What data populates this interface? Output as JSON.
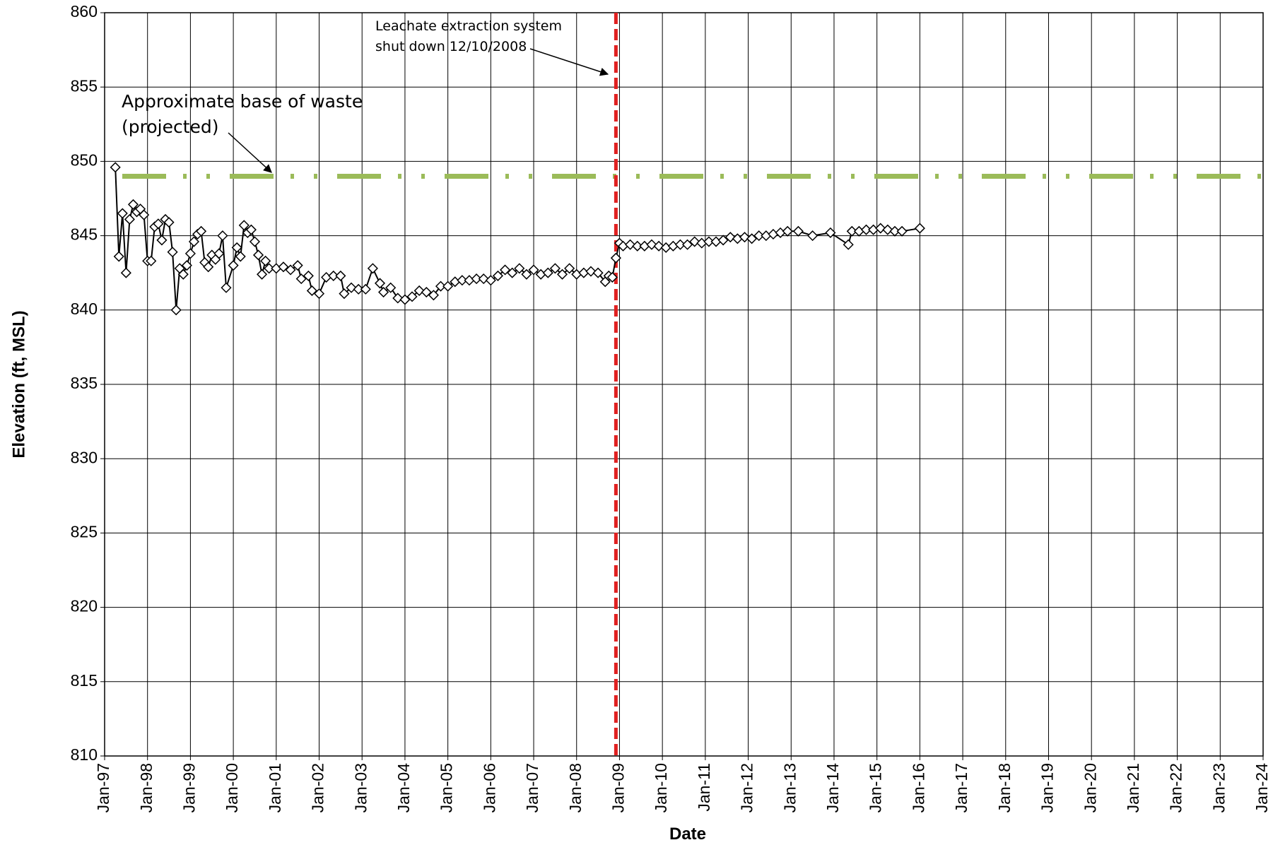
{
  "chart_data": {
    "type": "line",
    "y_label": "Elevation (ft, MSL)",
    "x_label": "Date",
    "xlim": [
      "1997-01",
      "2024-01"
    ],
    "xticks": [
      {
        "value": "1997-01",
        "label": "Jan-97"
      },
      {
        "value": "1998-01",
        "label": "Jan-98"
      },
      {
        "value": "1999-01",
        "label": "Jan-99"
      },
      {
        "value": "2000-01",
        "label": "Jan-00"
      },
      {
        "value": "2001-01",
        "label": "Jan-01"
      },
      {
        "value": "2002-01",
        "label": "Jan-02"
      },
      {
        "value": "2003-01",
        "label": "Jan-03"
      },
      {
        "value": "2004-01",
        "label": "Jan-04"
      },
      {
        "value": "2005-01",
        "label": "Jan-05"
      },
      {
        "value": "2006-01",
        "label": "Jan-06"
      },
      {
        "value": "2007-01",
        "label": "Jan-07"
      },
      {
        "value": "2008-01",
        "label": "Jan-08"
      },
      {
        "value": "2009-01",
        "label": "Jan-09"
      },
      {
        "value": "2010-01",
        "label": "Jan-10"
      },
      {
        "value": "2011-01",
        "label": "Jan-11"
      },
      {
        "value": "2012-01",
        "label": "Jan-12"
      },
      {
        "value": "2013-01",
        "label": "Jan-13"
      },
      {
        "value": "2014-01",
        "label": "Jan-14"
      },
      {
        "value": "2015-01",
        "label": "Jan-15"
      },
      {
        "value": "2016-01",
        "label": "Jan-16"
      },
      {
        "value": "2017-01",
        "label": "Jan-17"
      },
      {
        "value": "2018-01",
        "label": "Jan-18"
      },
      {
        "value": "2019-01",
        "label": "Jan-19"
      },
      {
        "value": "2020-01",
        "label": "Jan-20"
      },
      {
        "value": "2021-01",
        "label": "Jan-21"
      },
      {
        "value": "2022-01",
        "label": "Jan-22"
      },
      {
        "value": "2023-01",
        "label": "Jan-23"
      },
      {
        "value": "2024-01",
        "label": "Jan-24"
      }
    ],
    "ylim": [
      810,
      860
    ],
    "yticks": [
      810,
      815,
      820,
      825,
      830,
      835,
      840,
      845,
      850,
      855,
      860
    ],
    "grid": true,
    "x": [
      "1997-04",
      "1997-05",
      "1997-06",
      "1997-07",
      "1997-08",
      "1997-09",
      "1997-10",
      "1997-11",
      "1997-12",
      "1998-01",
      "1998-02",
      "1998-03",
      "1998-04",
      "1998-05",
      "1998-06",
      "1998-07",
      "1998-08",
      "1998-09",
      "1998-10",
      "1998-11",
      "1998-12",
      "1999-01",
      "1999-02",
      "1999-03",
      "1999-04",
      "1999-05",
      "1999-06",
      "1999-07",
      "1999-08",
      "1999-09",
      "1999-10",
      "1999-11",
      "2000-01",
      "2000-02",
      "2000-03",
      "2000-04",
      "2000-05",
      "2000-06",
      "2000-07",
      "2000-08",
      "2000-09",
      "2000-10",
      "2000-11",
      "2001-01",
      "2001-03",
      "2001-05",
      "2001-07",
      "2001-08",
      "2001-10",
      "2001-11",
      "2002-01",
      "2002-03",
      "2002-05",
      "2002-07",
      "2002-08",
      "2002-10",
      "2002-12",
      "2003-02",
      "2003-04",
      "2003-06",
      "2003-07",
      "2003-09",
      "2003-11",
      "2004-01",
      "2004-03",
      "2004-05",
      "2004-07",
      "2004-09",
      "2004-11",
      "2005-01",
      "2005-03",
      "2005-05",
      "2005-07",
      "2005-09",
      "2005-11",
      "2006-01",
      "2006-03",
      "2006-05",
      "2006-07",
      "2006-09",
      "2006-11",
      "2007-01",
      "2007-03",
      "2007-05",
      "2007-07",
      "2007-09",
      "2007-11",
      "2008-01",
      "2008-03",
      "2008-05",
      "2008-07",
      "2008-09",
      "2008-10",
      "2008-11",
      "2008-12",
      "2009-01",
      "2009-02",
      "2009-04",
      "2009-06",
      "2009-08",
      "2009-10",
      "2009-12",
      "2010-02",
      "2010-04",
      "2010-06",
      "2010-08",
      "2010-10",
      "2010-12",
      "2011-02",
      "2011-04",
      "2011-06",
      "2011-08",
      "2011-10",
      "2011-12",
      "2012-02",
      "2012-04",
      "2012-06",
      "2012-08",
      "2012-10",
      "2012-12",
      "2013-03",
      "2013-07",
      "2013-12",
      "2014-05",
      "2014-06",
      "2014-08",
      "2014-10",
      "2014-12",
      "2015-02",
      "2015-04",
      "2015-06",
      "2015-08",
      "2016-01"
    ],
    "series": [
      {
        "color": "#000000",
        "values": [
          849.6,
          843.6,
          846.5,
          842.5,
          846.1,
          847.1,
          846.6,
          846.8,
          846.4,
          843.3,
          843.3,
          845.6,
          845.8,
          844.7,
          846.1,
          845.9,
          843.9,
          840.0,
          842.8,
          842.4,
          843.0,
          843.8,
          844.6,
          845.1,
          845.3,
          843.2,
          842.9,
          843.7,
          843.4,
          843.8,
          845.0,
          841.5,
          843.0,
          844.2,
          843.6,
          845.7,
          845.2,
          845.4,
          844.6,
          843.7,
          842.4,
          843.3,
          842.8,
          842.8,
          842.9,
          842.7,
          843.0,
          842.1,
          842.3,
          841.3,
          841.1,
          842.2,
          842.3,
          842.3,
          841.1,
          841.5,
          841.4,
          841.4,
          842.8,
          841.8,
          841.2,
          841.5,
          840.8,
          840.7,
          840.9,
          841.3,
          841.2,
          841.0,
          841.6,
          841.6,
          841.9,
          842.0,
          842.0,
          842.1,
          842.1,
          842.0,
          842.3,
          842.7,
          842.5,
          842.8,
          842.4,
          842.7,
          842.4,
          842.5,
          842.8,
          842.4,
          842.8,
          842.4,
          842.5,
          842.6,
          842.5,
          841.9,
          842.3,
          842.2,
          843.5,
          844.5,
          844.3,
          844.4,
          844.3,
          844.3,
          844.4,
          844.3,
          844.2,
          844.3,
          844.4,
          844.4,
          844.6,
          844.5,
          844.6,
          844.6,
          844.7,
          844.9,
          844.8,
          844.9,
          844.8,
          845.0,
          845.0,
          845.1,
          845.2,
          845.3,
          845.3,
          845.0,
          845.2,
          844.4,
          845.3,
          845.3,
          845.4,
          845.4,
          845.5,
          845.4,
          845.3,
          845.3,
          845.5
        ]
      }
    ],
    "hlines": [
      {
        "value": 849,
        "color": "#9bbb59",
        "label": [
          "Approximate base of waste",
          "(projected)"
        ]
      }
    ],
    "vlines": [
      {
        "value": "2008-12",
        "color": "#e02020",
        "label": [
          "Leachate extraction system",
          "shut down 12/10/2008"
        ]
      }
    ]
  }
}
